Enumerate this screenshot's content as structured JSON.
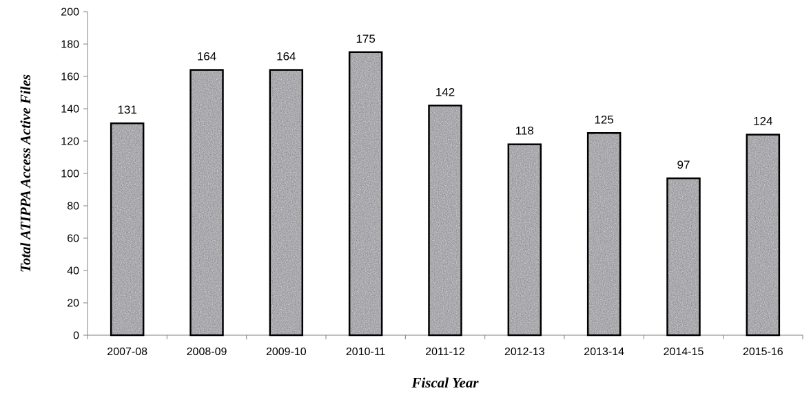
{
  "chart_data": {
    "type": "bar",
    "categories": [
      "2007-08",
      "2008-09",
      "2009-10",
      "2010-11",
      "2011-12",
      "2012-13",
      "2013-14",
      "2014-15",
      "2015-16"
    ],
    "values": [
      131,
      164,
      164,
      175,
      142,
      118,
      125,
      97,
      124
    ],
    "data_labels": [
      "131",
      "164",
      "164",
      "175",
      "142",
      "118",
      "125",
      "97",
      "124"
    ],
    "xlabel": "Fiscal Year",
    "ylabel": "Total ATIPPA Access Active Files",
    "ylim": [
      0,
      200
    ],
    "yticks": [
      0,
      20,
      40,
      60,
      80,
      100,
      120,
      140,
      160,
      180,
      200
    ],
    "grid": false,
    "legend": "none",
    "bar_fill_pattern": "speckled-gray"
  }
}
